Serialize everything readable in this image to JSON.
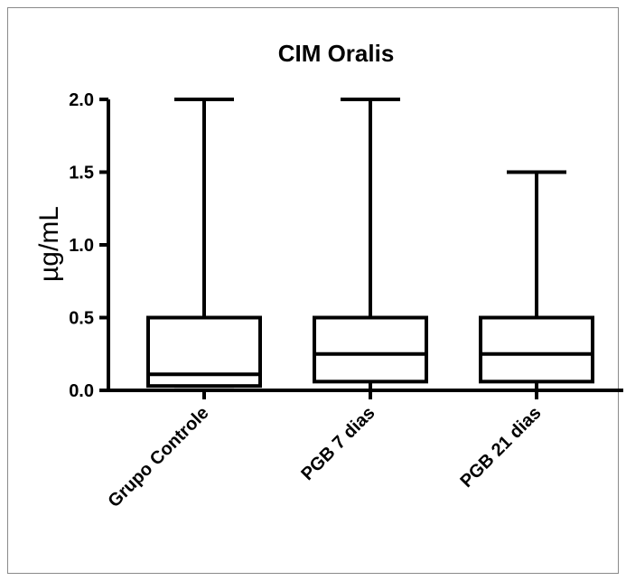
{
  "chart_data": {
    "type": "boxplot",
    "title": "CIM Oralis",
    "ylabel": "µg/mL",
    "xlabel": "",
    "ylim": [
      0,
      2.0
    ],
    "yticks": [
      0.0,
      0.5,
      1.0,
      1.5,
      2.0
    ],
    "ytick_labels": [
      "0.0",
      "0.5",
      "1.0",
      "1.5",
      "2.0"
    ],
    "categories": [
      "Grupo Controle",
      "PGB 7 dias",
      "PGB 21 dias"
    ],
    "boxes": [
      {
        "min": 0.03,
        "q1": 0.03,
        "median": 0.11,
        "q3": 0.5,
        "max": 2.0
      },
      {
        "min": 0.0,
        "q1": 0.06,
        "median": 0.25,
        "q3": 0.5,
        "max": 2.0
      },
      {
        "min": 0.0,
        "q1": 0.06,
        "median": 0.25,
        "q3": 0.5,
        "max": 1.5
      }
    ],
    "grid": false,
    "legend": "none"
  }
}
